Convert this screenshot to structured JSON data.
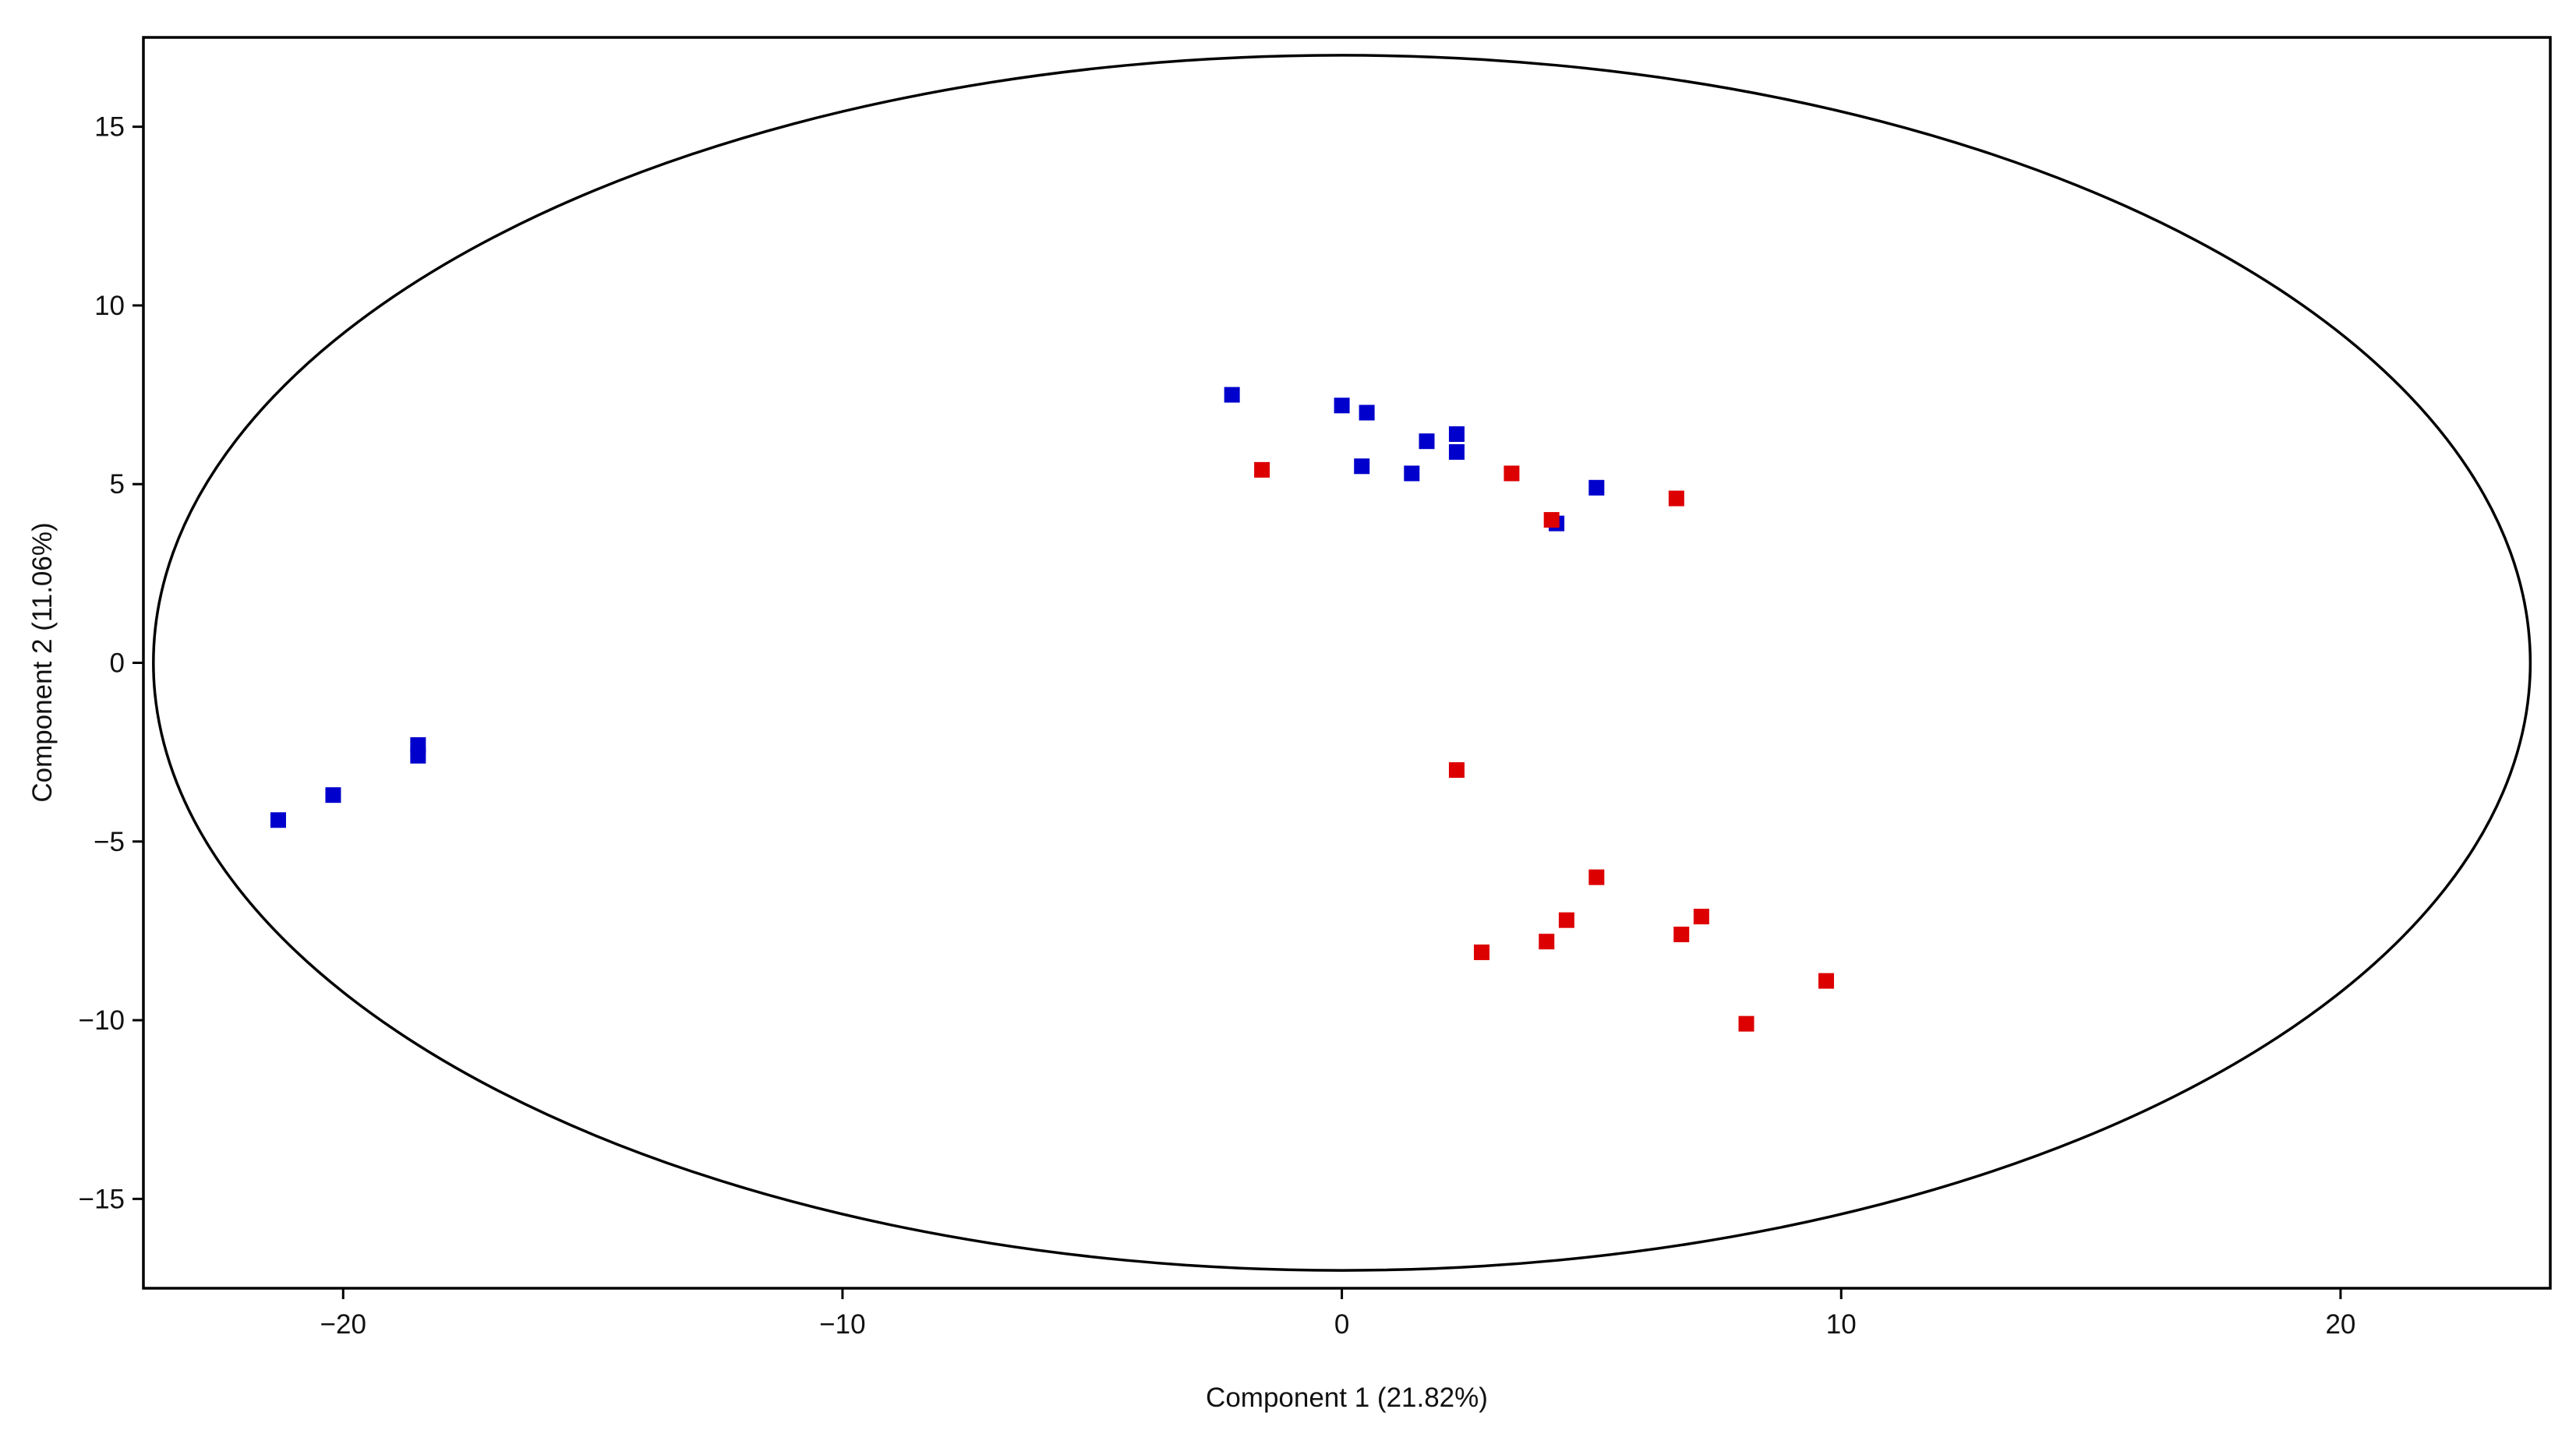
{
  "chart_data": {
    "type": "scatter",
    "title": "",
    "xlabel": "Component 1 (21.82%)",
    "ylabel": "Component 2 (11.06%)",
    "xlim": [
      -24,
      24.2
    ],
    "ylim": [
      -17.5,
      17.5
    ],
    "xticks": [
      -20,
      -10,
      0,
      10,
      20
    ],
    "yticks": [
      -15,
      -10,
      -5,
      0,
      5,
      10,
      15
    ],
    "xtick_labels": [
      "−20",
      "−10",
      "0",
      "10",
      "20"
    ],
    "ytick_labels": [
      "−15",
      "−10",
      "−5",
      "0",
      "5",
      "10",
      "15"
    ],
    "grid": false,
    "legend": "none",
    "marker": "square",
    "confidence_ellipse": {
      "center": [
        0,
        0
      ],
      "rx": 23.8,
      "ry": 17.0,
      "color": "#000000"
    },
    "series": [
      {
        "color": "#0000cc",
        "points": [
          {
            "x": -21.3,
            "y": -4.4
          },
          {
            "x": -20.2,
            "y": -3.7
          },
          {
            "x": -18.5,
            "y": -2.3
          },
          {
            "x": -18.5,
            "y": -2.6
          },
          {
            "x": -2.2,
            "y": 7.5
          },
          {
            "x": 0.0,
            "y": 7.2
          },
          {
            "x": 0.5,
            "y": 7.0
          },
          {
            "x": 0.4,
            "y": 5.5
          },
          {
            "x": 1.4,
            "y": 5.3
          },
          {
            "x": 1.7,
            "y": 6.2
          },
          {
            "x": 2.3,
            "y": 6.4
          },
          {
            "x": 2.3,
            "y": 5.9
          },
          {
            "x": 4.3,
            "y": 3.9
          },
          {
            "x": 5.1,
            "y": 4.9
          }
        ]
      },
      {
        "color": "#dd0000",
        "points": [
          {
            "x": -1.6,
            "y": 5.4
          },
          {
            "x": 3.4,
            "y": 5.3
          },
          {
            "x": 4.2,
            "y": 4.0
          },
          {
            "x": 6.7,
            "y": 4.6
          },
          {
            "x": 2.3,
            "y": -3.0
          },
          {
            "x": 2.8,
            "y": -8.1
          },
          {
            "x": 4.1,
            "y": -7.8
          },
          {
            "x": 4.5,
            "y": -7.2
          },
          {
            "x": 5.1,
            "y": -6.0
          },
          {
            "x": 6.8,
            "y": -7.6
          },
          {
            "x": 7.2,
            "y": -7.1
          },
          {
            "x": 8.1,
            "y": -10.1
          },
          {
            "x": 9.7,
            "y": -8.9
          }
        ]
      }
    ]
  }
}
